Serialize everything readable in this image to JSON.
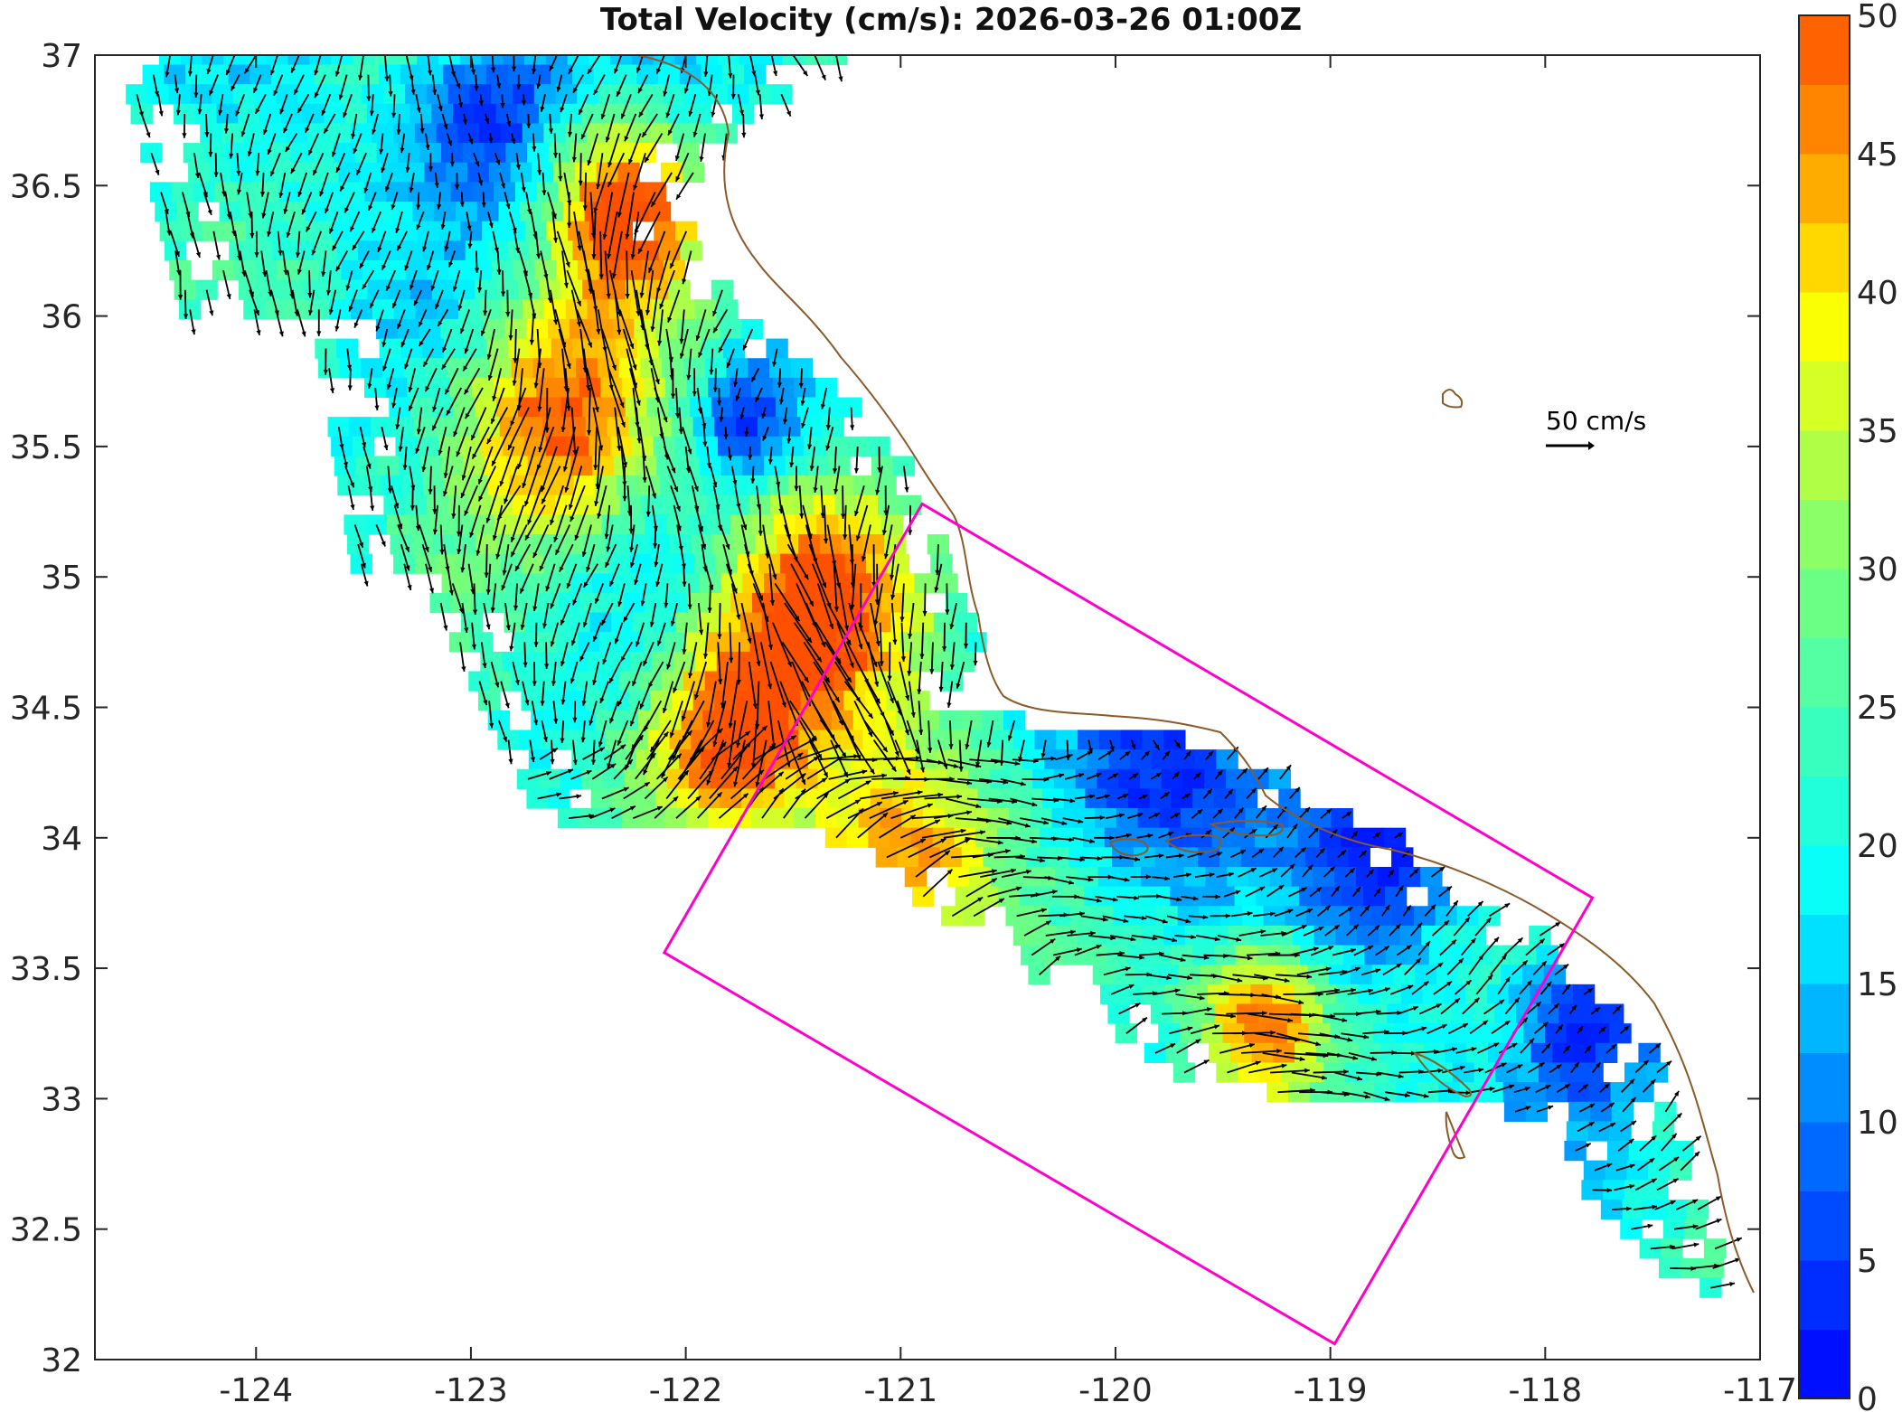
{
  "title": "Total Velocity (cm/s): 2026-03-26 01:00Z",
  "map": {
    "lon_range": [
      -124.75,
      -117.0
    ],
    "lat_range": [
      32.0,
      37.0
    ],
    "lon_ticks": [
      "-124",
      "-123",
      "-122",
      "-121",
      "-120",
      "-119",
      "-118",
      "-117"
    ],
    "lat_ticks": [
      "37",
      "36.5",
      "36",
      "35.5",
      "35",
      "34.5",
      "34",
      "33.5",
      "33",
      "32.5",
      "32"
    ],
    "box_color": "#ff00cc",
    "coast_color": "#8b5a2b",
    "arrow_color": "#000000",
    "domain_box": [
      [
        -120.9,
        35.28
      ],
      [
        -117.78,
        33.77
      ],
      [
        -118.98,
        32.06
      ],
      [
        -122.1,
        33.56
      ]
    ]
  },
  "scale": {
    "label": "50 cm/s",
    "value": 50
  },
  "colorbar": {
    "ticks": [
      "50",
      "45",
      "40",
      "35",
      "30",
      "25",
      "20",
      "15",
      "10",
      "5",
      "0"
    ],
    "min": 0,
    "max": 50,
    "levels": 20
  }
}
